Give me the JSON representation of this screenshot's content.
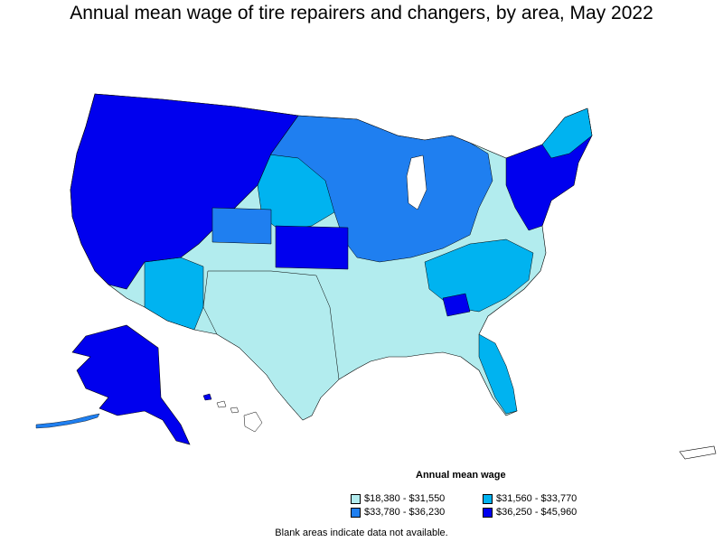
{
  "title": "Annual mean wage of tire repairers and changers, by area, May 2022",
  "legend": {
    "title": "Annual mean wage",
    "items": [
      {
        "label": "$18,380 - $31,550",
        "color": "#b2ecee"
      },
      {
        "label": "$31,560 - $33,770",
        "color": "#00b3f0"
      },
      {
        "label": "$33,780 - $36,230",
        "color": "#1f7ff0"
      },
      {
        "label": "$36,250 - $45,960",
        "color": "#0000ee"
      }
    ]
  },
  "note": "Blank areas indicate data not available."
}
